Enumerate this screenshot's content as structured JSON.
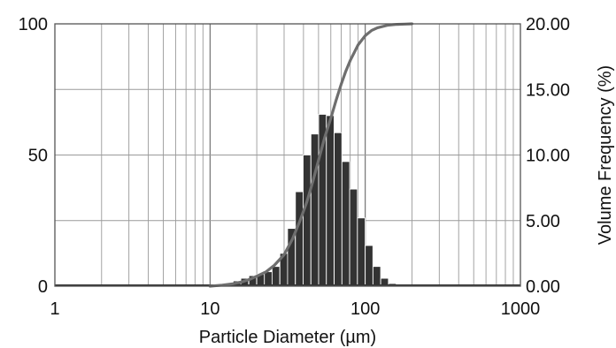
{
  "chart_data": {
    "type": "bar",
    "title": "",
    "xlabel": "Particle Diameter (µm)",
    "ylabel": "",
    "y2label": "Volume Frequency (%)",
    "x_scale": "log",
    "xlim": [
      1,
      1000
    ],
    "ylim": [
      0,
      100
    ],
    "y2lim": [
      0,
      20
    ],
    "grid": true,
    "x_ticks": [
      "1",
      "10",
      "100",
      "1000"
    ],
    "y_ticks": [
      "0",
      "50",
      "100"
    ],
    "y2_ticks": [
      "0.00",
      "5.00",
      "10.00",
      "15.00",
      "20.00"
    ],
    "bar_color": "#333333",
    "curve_color": "#6e6e6e",
    "series": [
      {
        "type": "bar",
        "axis": "right",
        "x": [
          10.0,
          11.2,
          12.6,
          14.1,
          15.8,
          17.8,
          20.0,
          22.4,
          25.1,
          28.2,
          31.6,
          35.5,
          39.8,
          44.7,
          50.1,
          56.2,
          63.1,
          70.8,
          79.4,
          89.1,
          100.0,
          112.2,
          125.9,
          141.3,
          158.5,
          177.8
        ],
        "values": [
          0.05,
          0.1,
          0.2,
          0.4,
          0.6,
          0.8,
          0.9,
          1.1,
          1.5,
          2.5,
          4.4,
          7.2,
          10.0,
          11.6,
          13.1,
          13.0,
          11.7,
          9.5,
          7.4,
          5.2,
          3.1,
          1.5,
          0.6,
          0.2,
          0.05,
          0.02
        ]
      },
      {
        "type": "line",
        "axis": "left",
        "x": [
          10,
          12,
          14,
          16,
          18,
          20,
          23,
          26,
          30,
          34,
          38,
          42,
          46,
          50,
          55,
          60,
          65,
          70,
          75,
          80,
          90,
          100,
          110,
          120,
          140,
          160,
          180,
          200
        ],
        "values": [
          0,
          0.4,
          0.9,
          1.6,
          2.6,
          3.8,
          5.5,
          8,
          12,
          18,
          25,
          32,
          40,
          48,
          57,
          64,
          71,
          77,
          82,
          86,
          92,
          95.5,
          97.5,
          98.5,
          99.5,
          99.8,
          99.9,
          100
        ]
      }
    ]
  }
}
